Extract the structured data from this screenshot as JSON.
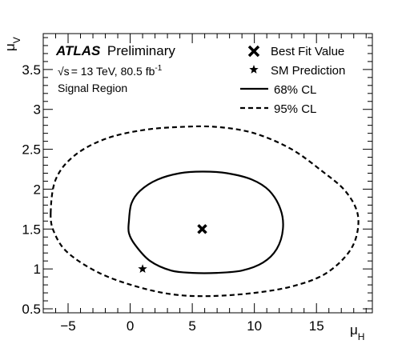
{
  "chart_data": {
    "type": "contour",
    "experiment": "ATLAS",
    "status": "Preliminary",
    "energy_text": "= 13 TeV, 80.5 fb",
    "sqrt_s": "√s",
    "lumi_exp": "-1",
    "region": "Signal Region",
    "xlabel": {
      "main": "μ",
      "sub": "H"
    },
    "ylabel": {
      "main": "μ",
      "sub": "V"
    },
    "xlim": [
      -7,
      19.5
    ],
    "ylim": [
      0.45,
      3.95
    ],
    "xticks": [
      {
        "v": -5,
        "label": "−5"
      },
      {
        "v": 0,
        "label": "0"
      },
      {
        "v": 5,
        "label": "5"
      },
      {
        "v": 10,
        "label": "10"
      },
      {
        "v": 15,
        "label": "15"
      }
    ],
    "yticks": [
      {
        "v": 0.5,
        "label": "0.5"
      },
      {
        "v": 1,
        "label": "1"
      },
      {
        "v": 1.5,
        "label": "1.5"
      },
      {
        "v": 2,
        "label": "2"
      },
      {
        "v": 2.5,
        "label": "2.5"
      },
      {
        "v": 3,
        "label": "3"
      },
      {
        "v": 3.5,
        "label": "3.5"
      }
    ],
    "best_fit": {
      "x": 5.8,
      "y": 1.5
    },
    "sm_prediction": {
      "x": 1.0,
      "y": 1.0
    },
    "contour_68": [
      [
        -0.1,
        1.6
      ],
      [
        0.1,
        1.82
      ],
      [
        0.8,
        1.98
      ],
      [
        2.2,
        2.12
      ],
      [
        4.0,
        2.2
      ],
      [
        5.8,
        2.22
      ],
      [
        7.8,
        2.2
      ],
      [
        9.8,
        2.12
      ],
      [
        11.2,
        1.98
      ],
      [
        12.1,
        1.75
      ],
      [
        12.3,
        1.5
      ],
      [
        11.8,
        1.25
      ],
      [
        10.7,
        1.08
      ],
      [
        9.0,
        0.98
      ],
      [
        7.0,
        0.95
      ],
      [
        5.0,
        0.95
      ],
      [
        3.3,
        0.98
      ],
      [
        1.6,
        1.1
      ],
      [
        0.4,
        1.3
      ],
      [
        -0.1,
        1.45
      ]
    ],
    "contour_95": [
      [
        -6.4,
        1.7
      ],
      [
        -6.0,
        2.12
      ],
      [
        -4.5,
        2.42
      ],
      [
        -2.0,
        2.63
      ],
      [
        1.0,
        2.74
      ],
      [
        4.0,
        2.78
      ],
      [
        7.0,
        2.78
      ],
      [
        10.0,
        2.7
      ],
      [
        13.0,
        2.5
      ],
      [
        15.5,
        2.22
      ],
      [
        17.3,
        1.98
      ],
      [
        18.3,
        1.7
      ],
      [
        18.2,
        1.4
      ],
      [
        17.3,
        1.15
      ],
      [
        15.5,
        0.92
      ],
      [
        13.0,
        0.78
      ],
      [
        10.0,
        0.7
      ],
      [
        6.5,
        0.66
      ],
      [
        3.5,
        0.68
      ],
      [
        0.5,
        0.78
      ],
      [
        -2.5,
        0.95
      ],
      [
        -5.0,
        1.2
      ],
      [
        -6.1,
        1.45
      ]
    ],
    "legend": [
      {
        "marker": "cross",
        "label": "Best Fit Value"
      },
      {
        "marker": "star",
        "label": "SM Prediction"
      },
      {
        "marker": "solid",
        "label": "68% CL"
      },
      {
        "marker": "dashed",
        "label": "95% CL"
      }
    ]
  }
}
